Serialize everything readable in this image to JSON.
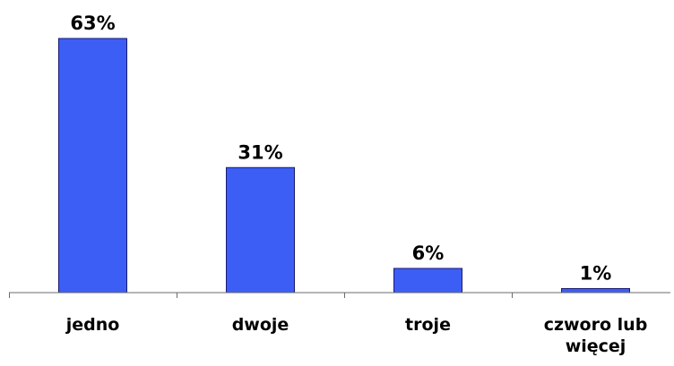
{
  "chart_data": {
    "type": "bar",
    "categories": [
      "jedno",
      "dwoje",
      "troje",
      "czworo lub więcej"
    ],
    "values": [
      63,
      31,
      6,
      1
    ],
    "data_labels": [
      "63%",
      "31%",
      "6%",
      "1%"
    ],
    "title": "",
    "xlabel": "",
    "ylabel": "",
    "ylim": [
      0,
      63
    ],
    "bar_color": "#3c5ef5",
    "bar_border_color": "#1a1a6e",
    "axis_color": "#6b6b6b",
    "grid": false,
    "legend": "none"
  }
}
